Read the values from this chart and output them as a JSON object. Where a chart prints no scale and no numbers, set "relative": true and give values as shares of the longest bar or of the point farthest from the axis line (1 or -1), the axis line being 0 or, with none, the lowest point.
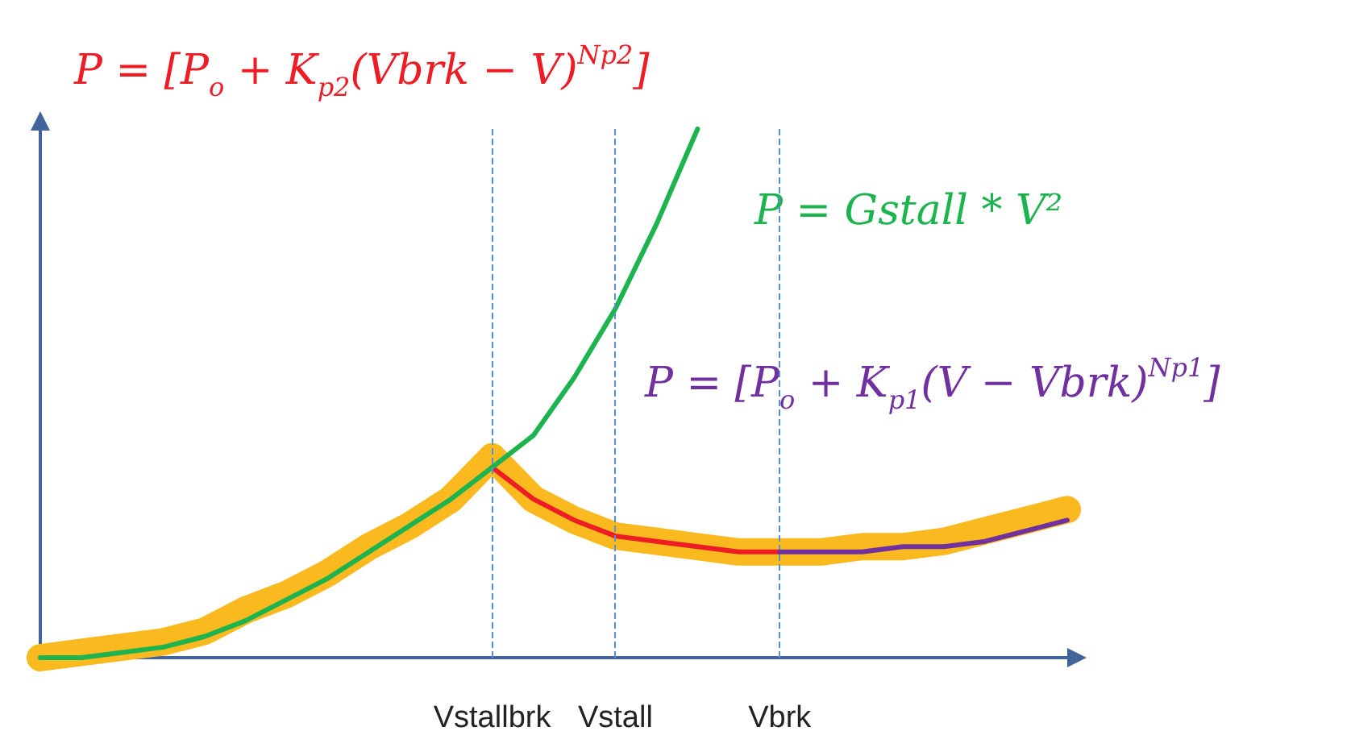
{
  "chart_data": {
    "type": "line",
    "relative": true,
    "tick_labels": "x",
    "marker": "none",
    "line_style": "solid",
    "categories": [
      null,
      null,
      null,
      null,
      null,
      null,
      null,
      null,
      null,
      null,
      null,
      "Vstallbrk",
      null,
      null,
      "Vstall",
      null,
      null,
      null,
      "Vbrk",
      null,
      null,
      null,
      null,
      null,
      null,
      null
    ],
    "series": [
      {
        "color": "#f9b91f",
        "values": [
          0,
          0.01,
          0.02,
          0.03,
          0.05,
          0.09,
          0.12,
          0.16,
          0.21,
          0.25,
          0.3,
          0.38,
          0.3,
          0.26,
          0.23,
          0.22,
          0.21,
          0.2,
          0.2,
          0.2,
          0.21,
          0.21,
          0.22,
          0.24,
          0.26,
          0.28
        ]
      },
      {
        "color": "#ee1c25",
        "values": [
          null,
          null,
          null,
          null,
          null,
          null,
          null,
          null,
          null,
          null,
          null,
          0.36,
          0.3,
          0.26,
          0.23,
          0.22,
          0.21,
          0.2,
          0.2,
          null,
          null,
          null,
          null,
          null,
          null,
          null
        ]
      },
      {
        "color": "#1db34f",
        "values": [
          0,
          0,
          0.01,
          0.02,
          0.04,
          0.07,
          0.11,
          0.15,
          0.2,
          0.25,
          0.3,
          0.36,
          0.42,
          0.53,
          0.66,
          0.82,
          1,
          null,
          null,
          null,
          null,
          null,
          null,
          null,
          null,
          null
        ]
      },
      {
        "color": "#7030a0",
        "values": [
          null,
          null,
          null,
          null,
          null,
          null,
          null,
          null,
          null,
          null,
          null,
          null,
          null,
          null,
          null,
          null,
          null,
          null,
          0.2,
          0.2,
          0.2,
          0.21,
          0.21,
          0.22,
          0.24,
          0.26
        ]
      }
    ],
    "ref_lines": [
      {
        "axis": "x",
        "value": "Vstallbrk",
        "color": "#5b8fd4",
        "line_style": "dashed"
      },
      {
        "axis": "x",
        "value": "Vstall",
        "color": "#5b8fd4",
        "line_style": "dashed"
      },
      {
        "axis": "x",
        "value": "Vbrk",
        "color": "#5b8fd4",
        "line_style": "dashed"
      }
    ],
    "annotations": [
      "P = [P$_{o}$ + K$_{p2}$(Vbrk − V)$^{Np2}$]",
      "P = Gstall * V²",
      "P = [P$_{o}$ + K$_{p1}$(V − Vbrk)$^{Np1}$]"
    ]
  }
}
